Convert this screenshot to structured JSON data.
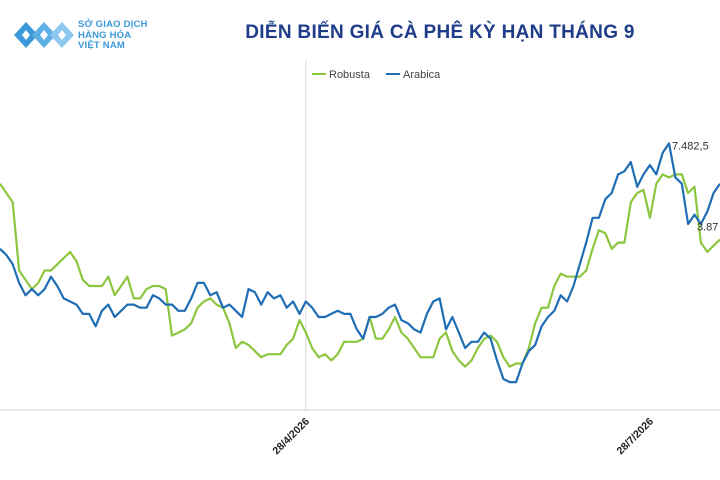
{
  "header": {
    "logo_lines": [
      "SỞ GIAO DỊCH",
      "HÀNG HÓA",
      "VIỆT NAM"
    ],
    "title": "DIỄN BIẾN GIÁ CÀ PHÊ KỲ HẠN THÁNG 9"
  },
  "colors": {
    "robusta": "#8cc63f",
    "arabica": "#1f6db5",
    "title": "#1f3c88",
    "logo": "#3a9ad9"
  },
  "chart_data": {
    "type": "line",
    "title": "DIỄN BIẾN GIÁ CÀ PHÊ KỲ HẠN THÁNG 9",
    "legend": "top-center",
    "x_tick_labels": [
      "28/4/2026",
      "28/7/2026"
    ],
    "x_tick_index": [
      48,
      102
    ],
    "value_labels": [
      {
        "series": "Arabica",
        "text": "7.482,5"
      },
      {
        "series": "Robusta",
        "text": "3.87"
      }
    ],
    "ylim": [
      0,
      100
    ],
    "series": [
      {
        "name": "Robusta",
        "values": [
          73,
          70,
          67,
          45,
          42,
          39,
          41,
          45,
          45,
          47,
          49,
          51,
          48,
          42,
          40,
          40,
          40,
          43,
          37,
          40,
          43,
          36,
          36,
          39,
          40,
          40,
          39,
          24,
          25,
          26,
          28,
          33,
          35,
          36,
          34,
          33,
          28,
          20,
          22,
          21,
          19,
          17,
          18,
          18,
          18,
          21,
          23,
          29,
          25,
          20,
          17,
          18,
          16,
          18,
          22,
          22,
          22,
          23,
          30,
          23,
          23,
          26,
          30,
          25,
          23,
          20,
          17,
          17,
          17,
          23,
          25,
          19,
          16,
          14,
          16,
          20,
          23,
          24,
          22,
          17,
          14,
          15,
          15,
          20,
          28,
          33,
          33,
          40,
          44,
          43,
          43,
          43,
          45,
          52,
          58,
          57,
          52,
          54,
          54,
          67,
          70,
          71,
          62,
          73,
          76,
          75,
          76,
          76,
          70,
          72,
          54,
          51,
          53,
          55
        ]
      },
      {
        "name": "Arabica",
        "values": [
          52,
          50,
          47,
          41,
          37,
          39,
          37,
          39,
          43,
          40,
          36,
          35,
          34,
          31,
          31,
          27,
          32,
          34,
          30,
          32,
          34,
          34,
          33,
          33,
          37,
          36,
          34,
          34,
          32,
          32,
          36,
          41,
          41,
          37,
          38,
          33,
          34,
          32,
          30,
          39,
          38,
          34,
          38,
          36,
          37,
          33,
          35,
          31,
          35,
          33,
          30,
          30,
          31,
          32,
          31,
          31,
          26,
          23,
          30,
          30,
          31,
          33,
          34,
          29,
          28,
          26,
          25,
          31,
          35,
          36,
          26,
          30,
          25,
          20,
          22,
          22,
          25,
          23,
          16,
          10,
          9,
          9,
          15,
          19,
          21,
          27,
          30,
          32,
          37,
          35,
          40,
          47,
          54,
          62,
          62,
          68,
          70,
          76,
          77,
          80,
          72,
          76,
          79,
          76,
          83,
          86,
          75,
          73,
          60,
          63,
          60,
          64,
          70,
          73
        ]
      }
    ]
  }
}
